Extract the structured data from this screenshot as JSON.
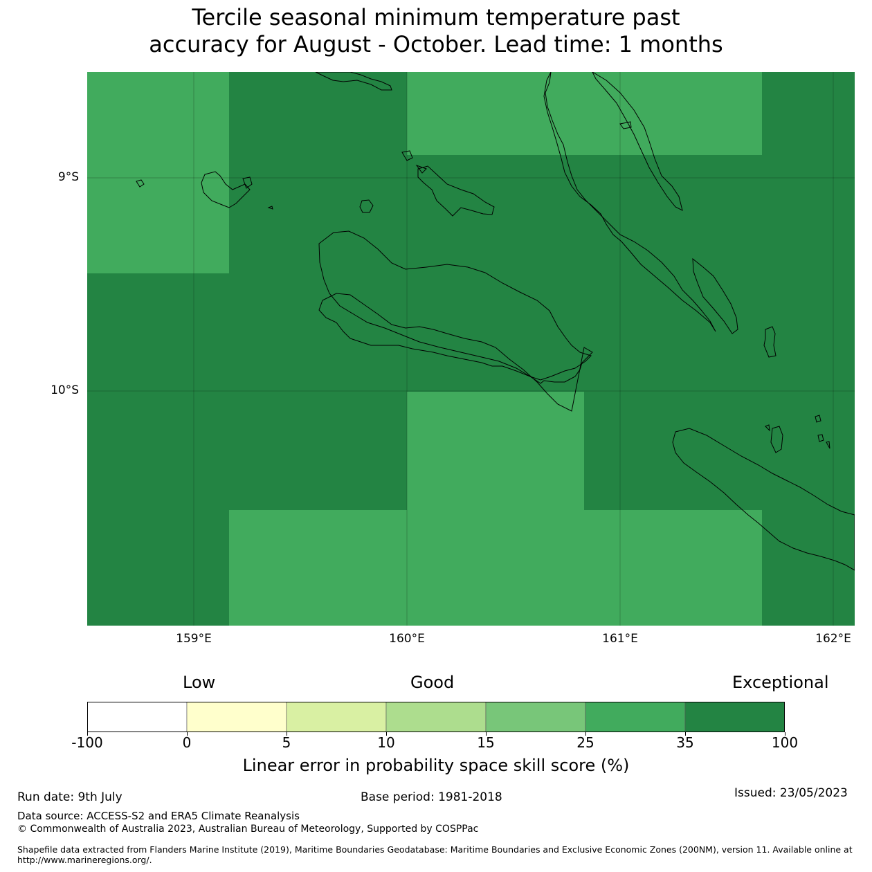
{
  "title": {
    "line1": "Tercile seasonal minimum temperature past",
    "line2": "accuracy for August - October. Lead time: 1 months"
  },
  "map": {
    "lat_labels": [
      "9°S",
      "10°S"
    ],
    "lon_labels": [
      "159°E",
      "160°E",
      "161°E",
      "162°E"
    ],
    "colors": {
      "good_25_35": "#41ab5d",
      "exceptional_35_100": "#238443"
    }
  },
  "colorbar": {
    "headers": {
      "low": "Low",
      "good": "Good",
      "exceptional": "Exceptional"
    },
    "ticks": [
      "-100",
      "0",
      "5",
      "10",
      "15",
      "25",
      "35",
      "100"
    ],
    "colors": [
      "#ffffff",
      "#ffffcc",
      "#d9f0a3",
      "#addd8e",
      "#78c679",
      "#41ab5d",
      "#238443"
    ],
    "label": "Linear error in probability space skill score (%)"
  },
  "footer": {
    "run_date": "Run date: 9th July",
    "base_period": "Base period: 1981-2018",
    "issued": "Issued: 23/05/2023",
    "data_source": "Data source: ACCESS-S2 and ERA5 Climate Reanalysis",
    "copyright": "© Commonwealth of Australia 2023, Australian Bureau of Meteorology, Supported by COSPPac",
    "shapefile_line1": "Shapefile data extracted from Flanders Marine Institute (2019), Maritime Boundaries Geodatabase: Maritime Boundaries and Exclusive Economic Zones (200NM), version 11. Available online at",
    "shapefile_line2": "http://www.marineregions.org/."
  }
}
